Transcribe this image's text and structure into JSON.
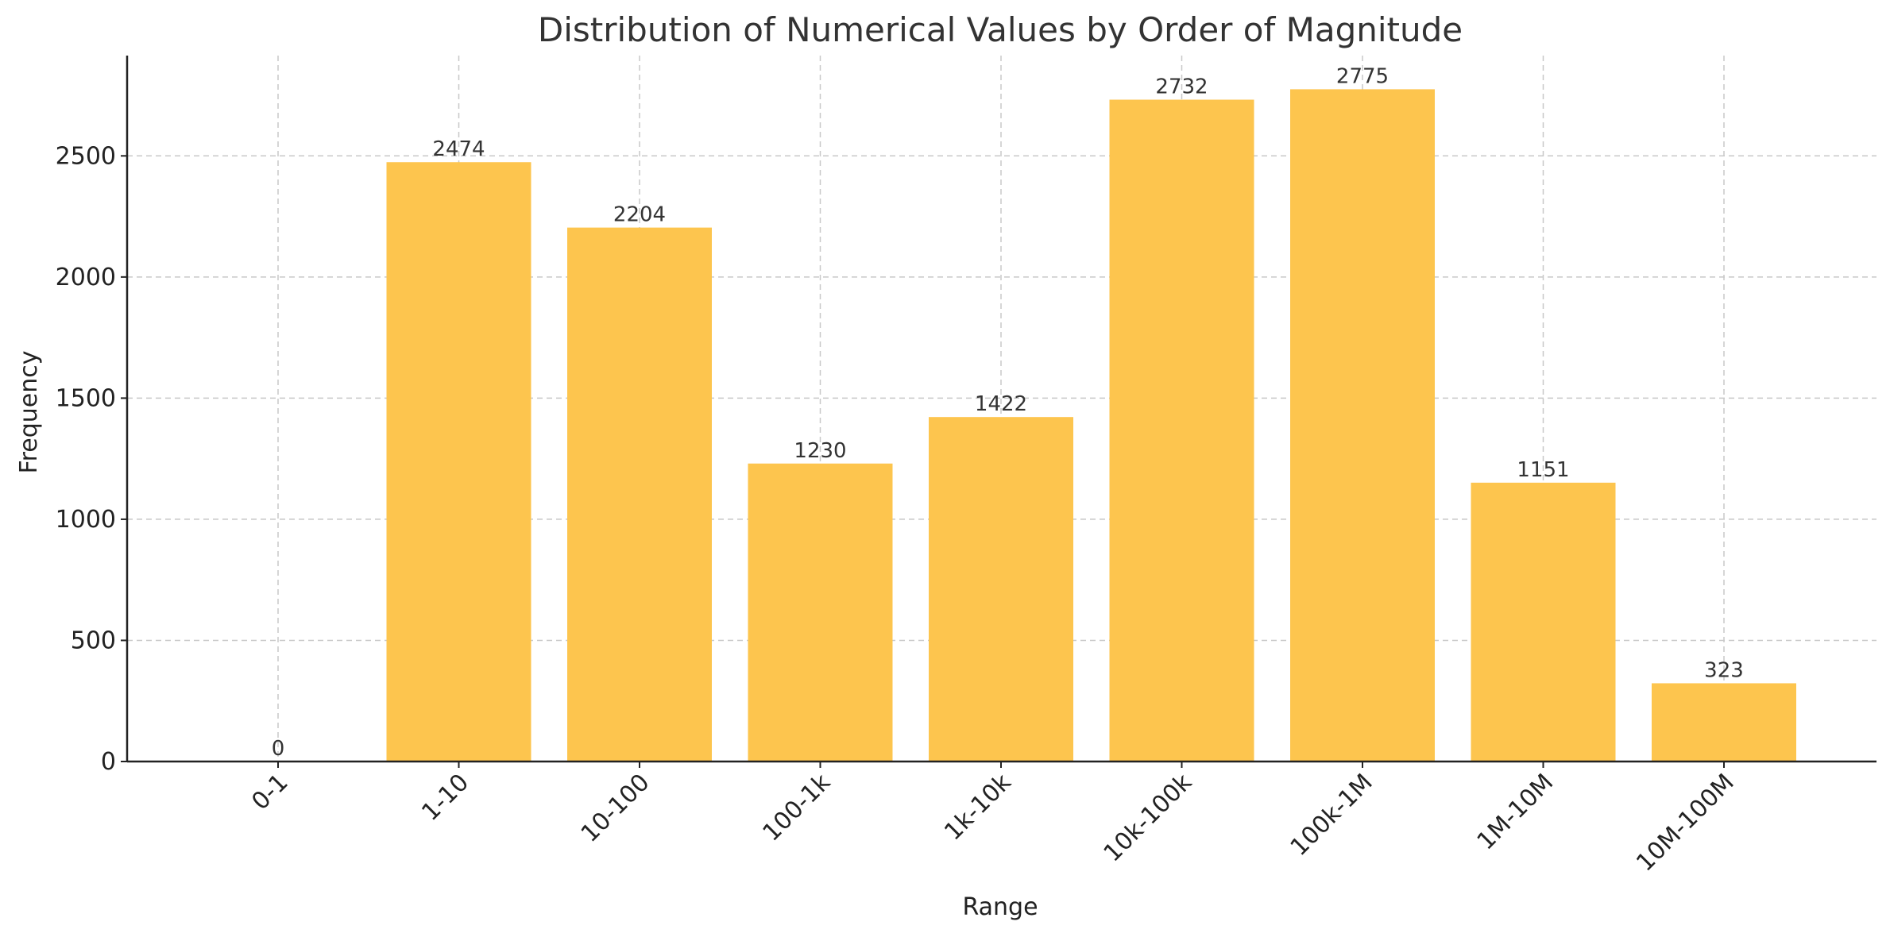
{
  "chart_data": {
    "type": "bar",
    "title": "Distribution of Numerical Values by Order of Magnitude",
    "xlabel": "Range",
    "ylabel": "Frequency",
    "categories": [
      "0-1",
      "1-10",
      "10-100",
      "100-1k",
      "1k-10k",
      "10k-100k",
      "100k-1M",
      "1M-10M",
      "10M-100M"
    ],
    "values": [
      0,
      2474,
      2204,
      1230,
      1422,
      2732,
      2775,
      1151,
      323
    ],
    "data_labels": [
      "0",
      "2474",
      "2204",
      "1230",
      "1422",
      "2732",
      "2775",
      "1151",
      "323"
    ],
    "ylim": [
      0,
      2914
    ],
    "yticks": [
      0,
      500,
      1000,
      1500,
      2000,
      2500
    ],
    "ytick_labels": [
      "0",
      "500",
      "1000",
      "1500",
      "2000",
      "2500"
    ],
    "grid": true,
    "colors": {
      "bar": "#fdc54e",
      "grid": "#c8c8c8",
      "axis": "#222222"
    }
  }
}
